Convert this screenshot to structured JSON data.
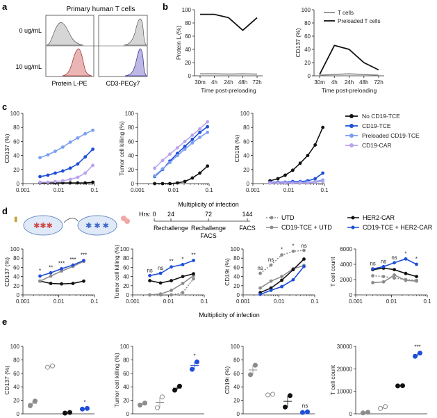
{
  "figure": {
    "panel_labels": [
      "a",
      "b",
      "c",
      "d",
      "e"
    ],
    "shared_xlabel": "Multiplicity of infection"
  },
  "colors": {
    "black": "#111111",
    "blue": "#1f4ed8",
    "lightblue": "#7b9ef0",
    "lavender": "#b9a3ec",
    "gray": "#8c8c8c",
    "red": "#d98585",
    "purple": "#8a86c9"
  },
  "panel_a": {
    "title": "Primary human T cells",
    "rows": [
      "0 ug/mL",
      "10 ug/mL"
    ],
    "xlabels": [
      "Protein L-PE",
      "CD3-PECy7"
    ]
  },
  "panel_d_schematic": {
    "hrs_label": "Hrs:",
    "ticks": [
      "0",
      "24",
      "72",
      "144"
    ],
    "events": [
      "Rechallenge",
      "Rechallenge",
      "FACS",
      "FACS"
    ],
    "legend": [
      "UTD",
      "CD19-TCE + UTD",
      "HER2-CAR",
      "CD19-TCE + HER2-CAR"
    ]
  },
  "chart_data": [
    {
      "id": "b1",
      "type": "line",
      "title": "",
      "xlabel": "Time post-preloading",
      "ylabel": "Protein L (%)",
      "categories": [
        "30m",
        "4h",
        "24h",
        "48h",
        "72h"
      ],
      "ylim": [
        0,
        100
      ],
      "yticks": [
        0,
        20,
        40,
        60,
        80,
        100
      ],
      "series": [
        {
          "name": "T cells",
          "color": "gray",
          "values": [
            3,
            3,
            2.5,
            3,
            2.5
          ]
        },
        {
          "name": "Preloaded T cells",
          "color": "black",
          "values": [
            93,
            93,
            88,
            69,
            88
          ]
        }
      ]
    },
    {
      "id": "b2",
      "type": "line",
      "title": "",
      "xlabel": "Time post-preloading",
      "ylabel": "CD137 (%)",
      "categories": [
        "30m",
        "4h",
        "24h",
        "48h",
        "72h"
      ],
      "ylim": [
        0,
        100
      ],
      "yticks": [
        0,
        20,
        40,
        60,
        80,
        100
      ],
      "legend": [
        "T cells",
        "Preloaded T cells"
      ],
      "series": [
        {
          "name": "T cells",
          "color": "gray",
          "values": [
            1,
            2,
            3,
            2,
            1
          ]
        },
        {
          "name": "Preloaded T cells",
          "color": "black",
          "values": [
            2,
            46,
            40,
            20,
            9
          ]
        }
      ]
    },
    {
      "id": "c1",
      "type": "scatter-line",
      "xscale": "log",
      "xlim": [
        0.001,
        0.1
      ],
      "xticks": [
        "0.001",
        "0.01",
        "0.1"
      ],
      "ylabel": "CD137 (%)",
      "ylim": [
        0,
        100
      ],
      "yticks": [
        0,
        20,
        40,
        60,
        80,
        100
      ],
      "x": [
        0.003,
        0.005,
        0.008,
        0.013,
        0.021,
        0.034,
        0.055,
        0.09
      ],
      "series": [
        {
          "name": "No CD19-TCE",
          "color": "black",
          "values": [
            1,
            1,
            1,
            1,
            1,
            1,
            1,
            2
          ]
        },
        {
          "name": "CD19-TCE",
          "color": "blue",
          "values": [
            10,
            12,
            15,
            18,
            22,
            28,
            38,
            49
          ]
        },
        {
          "name": "Preloaded CD19-TCE",
          "color": "lightblue",
          "values": [
            37,
            41,
            46,
            52,
            59,
            65,
            71,
            76
          ]
        },
        {
          "name": "CD19-CAR",
          "color": "lavender",
          "values": [
            2,
            2,
            3,
            4,
            6,
            9,
            15,
            26
          ]
        }
      ]
    },
    {
      "id": "c2",
      "type": "scatter-line",
      "xscale": "log",
      "xlim": [
        0.001,
        0.1
      ],
      "xticks": [
        "0.001",
        "0.01",
        "0.1"
      ],
      "ylabel": "Tumor cell killing (%)",
      "ylim": [
        0,
        100
      ],
      "yticks": [
        0,
        20,
        40,
        60,
        80,
        100
      ],
      "x": [
        0.003,
        0.005,
        0.008,
        0.013,
        0.021,
        0.034,
        0.055,
        0.09
      ],
      "series": [
        {
          "name": "No CD19-TCE",
          "color": "black",
          "values": [
            0,
            0,
            0,
            1,
            3,
            8,
            15,
            25
          ]
        },
        {
          "name": "CD19-TCE",
          "color": "blue",
          "values": [
            10,
            20,
            32,
            43,
            53,
            63,
            73,
            81
          ]
        },
        {
          "name": "Preloaded CD19-TCE",
          "color": "lightblue",
          "values": [
            11,
            21,
            30,
            40,
            49,
            58,
            66,
            73
          ]
        },
        {
          "name": "CD19-CAR",
          "color": "lavender",
          "values": [
            22,
            33,
            42,
            51,
            60,
            69,
            78,
            88
          ]
        }
      ]
    },
    {
      "id": "c3",
      "type": "scatter-line",
      "xscale": "log",
      "xlim": [
        0.001,
        0.1
      ],
      "xticks": [
        "0.001",
        "0.01",
        "0.1"
      ],
      "ylabel": "CD19t (%)",
      "ylim": [
        0,
        100
      ],
      "yticks": [
        0,
        20,
        40,
        60,
        80,
        100
      ],
      "legend": [
        "No CD19-TCE",
        "CD19-TCE",
        "Preloaded CD19-TCE",
        "CD19-CAR"
      ],
      "x": [
        0.003,
        0.005,
        0.008,
        0.013,
        0.021,
        0.034,
        0.055,
        0.09
      ],
      "series": [
        {
          "name": "No CD19-TCE",
          "color": "black",
          "values": [
            4,
            7,
            12,
            19,
            29,
            40,
            55,
            80
          ]
        },
        {
          "name": "CD19-TCE",
          "color": "blue",
          "values": [
            2,
            2,
            2,
            3,
            3,
            4,
            7,
            15
          ]
        },
        {
          "name": "Preloaded CD19-TCE",
          "color": "lightblue",
          "values": [
            1,
            1,
            1,
            1,
            2,
            2,
            3,
            5
          ]
        },
        {
          "name": "CD19-CAR",
          "color": "lavender",
          "values": [
            1,
            1,
            1,
            1,
            1,
            1,
            2,
            3
          ]
        }
      ]
    },
    {
      "id": "d1",
      "type": "scatter-line",
      "xscale": "log",
      "xlim": [
        0.001,
        0.1
      ],
      "xticks": [
        "0.001",
        "0.01",
        "0.1"
      ],
      "ylabel": "CD137 (%)",
      "ylim": [
        0,
        100
      ],
      "yticks": [
        0,
        20,
        40,
        60,
        80,
        100
      ],
      "x": [
        0.003,
        0.006,
        0.012,
        0.025,
        0.05
      ],
      "series": [
        {
          "name": "HER2-CAR",
          "color": "black",
          "values": [
            30,
            25,
            24,
            25,
            30
          ]
        },
        {
          "name": "CD19-TCE + UTD",
          "color": "gray",
          "values": [
            30,
            41,
            52,
            62,
            73
          ]
        },
        {
          "name": "CD19-TCE + HER2-CAR",
          "color": "blue",
          "values": [
            41,
            48,
            57,
            65,
            75
          ]
        }
      ],
      "annotations": [
        "*",
        "**",
        "***",
        "***",
        "***"
      ]
    },
    {
      "id": "d2",
      "type": "scatter-line",
      "xscale": "log",
      "xlim": [
        0.001,
        0.1
      ],
      "xticks": [
        "0.001",
        "0.01",
        "0.1"
      ],
      "ylabel": "Tumor cell killing (%)",
      "ylim": [
        0,
        100
      ],
      "yticks": [
        0,
        20,
        40,
        60,
        80,
        100
      ],
      "x": [
        0.003,
        0.006,
        0.012,
        0.025,
        0.05
      ],
      "series": [
        {
          "name": "UTD",
          "color": "gray",
          "dashed": true,
          "values": [
            0,
            0,
            0,
            5,
            35
          ]
        },
        {
          "name": "CD19-TCE + UTD",
          "color": "gray",
          "values": [
            0,
            2,
            10,
            25,
            42
          ]
        },
        {
          "name": "HER2-CAR",
          "color": "black",
          "values": [
            31,
            26,
            31,
            40,
            46
          ]
        },
        {
          "name": "CD19-TCE + HER2-CAR",
          "color": "blue",
          "values": [
            42,
            47,
            61,
            66,
            75
          ]
        }
      ],
      "annotations": [
        "ns",
        "ns",
        "**",
        "*",
        "**"
      ]
    },
    {
      "id": "d3",
      "type": "scatter-line",
      "xscale": "log",
      "xlim": [
        0.001,
        0.1
      ],
      "xticks": [
        "0.001",
        "0.01",
        "0.1"
      ],
      "ylabel": "CD19t (%)",
      "ylim": [
        0,
        100
      ],
      "yticks": [
        0,
        20,
        40,
        60,
        80,
        100
      ],
      "x": [
        0.003,
        0.006,
        0.012,
        0.025,
        0.05
      ],
      "series": [
        {
          "name": "UTD",
          "color": "gray",
          "dashed": true,
          "values": [
            47,
            65,
            87,
            95,
            97
          ]
        },
        {
          "name": "CD19-TCE + UTD",
          "color": "gray",
          "values": [
            15,
            30,
            40,
            57,
            64
          ]
        },
        {
          "name": "HER2-CAR",
          "color": "black",
          "values": [
            5,
            15,
            32,
            55,
            78
          ]
        },
        {
          "name": "CD19-TCE + HER2-CAR",
          "color": "blue",
          "values": [
            1,
            10,
            18,
            33,
            62
          ]
        }
      ],
      "annotations": [
        "ns",
        "ns",
        "*",
        "*",
        "ns"
      ]
    },
    {
      "id": "d4",
      "type": "scatter-line",
      "xscale": "log",
      "xlim": [
        0.001,
        0.1
      ],
      "xticks": [
        "0.001",
        "0.01",
        "0.1"
      ],
      "ylabel": "T cell count",
      "ylim": [
        0,
        6000
      ],
      "yticks": [
        0,
        2000,
        4000,
        6000
      ],
      "x": [
        0.003,
        0.006,
        0.012,
        0.025,
        0.05
      ],
      "series": [
        {
          "name": "UTD",
          "color": "gray",
          "dashed": true,
          "values": [
            2500,
            2400,
            2200,
            2000,
            1900
          ]
        },
        {
          "name": "CD19-TCE + UTD",
          "color": "gray",
          "values": [
            1600,
            1700,
            2600,
            1900,
            1800
          ]
        },
        {
          "name": "HER2-CAR",
          "color": "black",
          "values": [
            3300,
            3500,
            3300,
            2800,
            2400
          ]
        },
        {
          "name": "CD19-TCE + HER2-CAR",
          "color": "blue",
          "values": [
            3400,
            3700,
            4200,
            4700,
            4000
          ]
        }
      ],
      "annotations": [
        "ns",
        "ns",
        "ns",
        "*",
        "*"
      ]
    },
    {
      "id": "e1",
      "type": "dot",
      "ylabel": "CD137 (%)",
      "ylim": [
        0,
        100
      ],
      "yticks": [
        0,
        20,
        40,
        60,
        80,
        100
      ],
      "groups": [
        {
          "name": "CD19-TCE",
          "color": "gray",
          "fill": "solid",
          "values": [
            12,
            19
          ]
        },
        {
          "name": "CD19-TCE + UTD",
          "color": "gray",
          "fill": "open",
          "values": [
            69,
            71
          ]
        },
        {
          "name": "HER2-CAR",
          "color": "black",
          "fill": "solid",
          "values": [
            1,
            2
          ]
        },
        {
          "name": "CD19-TCE + HER2-CAR",
          "color": "blue",
          "fill": "solid",
          "values": [
            7,
            8
          ]
        }
      ],
      "annotations": [
        "",
        "",
        "",
        "*"
      ]
    },
    {
      "id": "e2",
      "type": "dot",
      "ylabel": "Tumor cell killing (%)",
      "ylim": [
        0,
        100
      ],
      "yticks": [
        0,
        20,
        40,
        60,
        80,
        100
      ],
      "groups": [
        {
          "name": "CD19-TCE",
          "color": "gray",
          "fill": "solid",
          "values": [
            13,
            16
          ]
        },
        {
          "name": "CD19-TCE + UTD",
          "color": "gray",
          "fill": "open",
          "values": [
            9,
            25
          ]
        },
        {
          "name": "HER2-CAR",
          "color": "black",
          "fill": "solid",
          "values": [
            35,
            41
          ]
        },
        {
          "name": "CD19-TCE + HER2-CAR",
          "color": "blue",
          "fill": "solid",
          "values": [
            66,
            77
          ]
        }
      ],
      "annotations": [
        "",
        "",
        "",
        "*"
      ]
    },
    {
      "id": "e3",
      "type": "dot",
      "ylabel": "CD19t (%)",
      "ylim": [
        0,
        100
      ],
      "yticks": [
        0,
        20,
        40,
        60,
        80,
        100
      ],
      "groups": [
        {
          "name": "CD19-TCE",
          "color": "gray",
          "fill": "solid",
          "values": [
            58,
            72
          ]
        },
        {
          "name": "CD19-TCE + UTD",
          "color": "gray",
          "fill": "open",
          "values": [
            28,
            29
          ]
        },
        {
          "name": "HER2-CAR",
          "color": "black",
          "fill": "solid",
          "values": [
            10,
            27
          ]
        },
        {
          "name": "CD19-TCE + HER2-CAR",
          "color": "blue",
          "fill": "solid",
          "values": [
            2,
            3
          ]
        }
      ],
      "annotations": [
        "",
        "",
        "",
        "ns"
      ]
    },
    {
      "id": "e4",
      "type": "dot",
      "ylabel": "T cell count",
      "ylim": [
        0,
        30000
      ],
      "yticks": [
        0,
        10000,
        20000,
        30000
      ],
      "groups": [
        {
          "name": "CD19-TCE",
          "color": "gray",
          "fill": "solid",
          "values": [
            400,
            700
          ]
        },
        {
          "name": "CD19-TCE + UTD",
          "color": "gray",
          "fill": "open",
          "values": [
            2400,
            3200
          ]
        },
        {
          "name": "HER2-CAR",
          "color": "black",
          "fill": "solid",
          "values": [
            12400,
            12500
          ]
        },
        {
          "name": "CD19-TCE + HER2-CAR",
          "color": "blue",
          "fill": "solid",
          "values": [
            25600,
            27000
          ]
        }
      ],
      "annotations": [
        "",
        "",
        "",
        "***"
      ]
    }
  ]
}
